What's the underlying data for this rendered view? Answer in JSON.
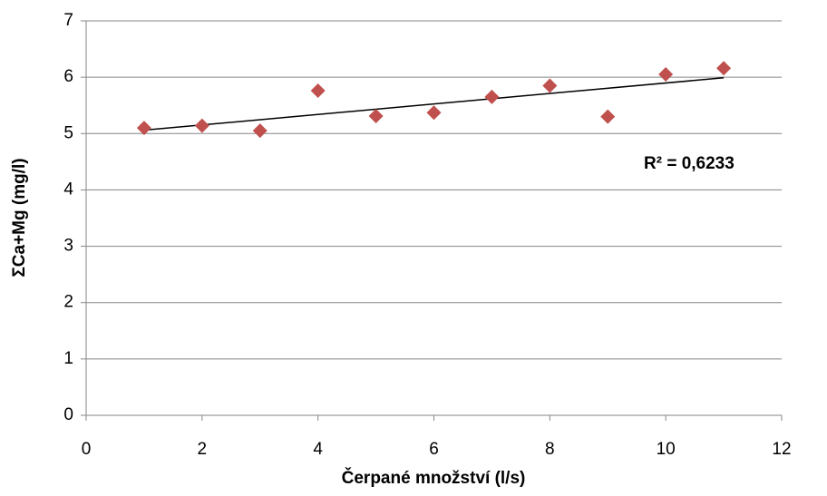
{
  "chart_data": {
    "type": "scatter",
    "x_label": "Čerpané množství (l/s)",
    "y_label": "ΣCa+Mg (mg/l)",
    "series": [
      {
        "color": "#c0504d",
        "x": [
          1,
          2,
          3,
          4,
          5,
          6,
          7,
          8,
          9,
          10,
          11
        ],
        "values": [
          5.1,
          5.14,
          5.05,
          5.76,
          5.31,
          5.37,
          5.65,
          5.85,
          5.3,
          6.05,
          6.16
        ]
      }
    ],
    "trendline": {
      "x": [
        1,
        11
      ],
      "values": [
        5.06,
        5.99
      ],
      "color": "#000000"
    },
    "annotation": "R² = 0,6233",
    "xlim": [
      0,
      12
    ],
    "xticks": [
      0,
      2,
      4,
      6,
      8,
      10,
      12
    ],
    "ylim": [
      0,
      7
    ],
    "yticks": [
      0,
      1,
      2,
      3,
      4,
      5,
      6,
      7
    ],
    "grid": true
  }
}
